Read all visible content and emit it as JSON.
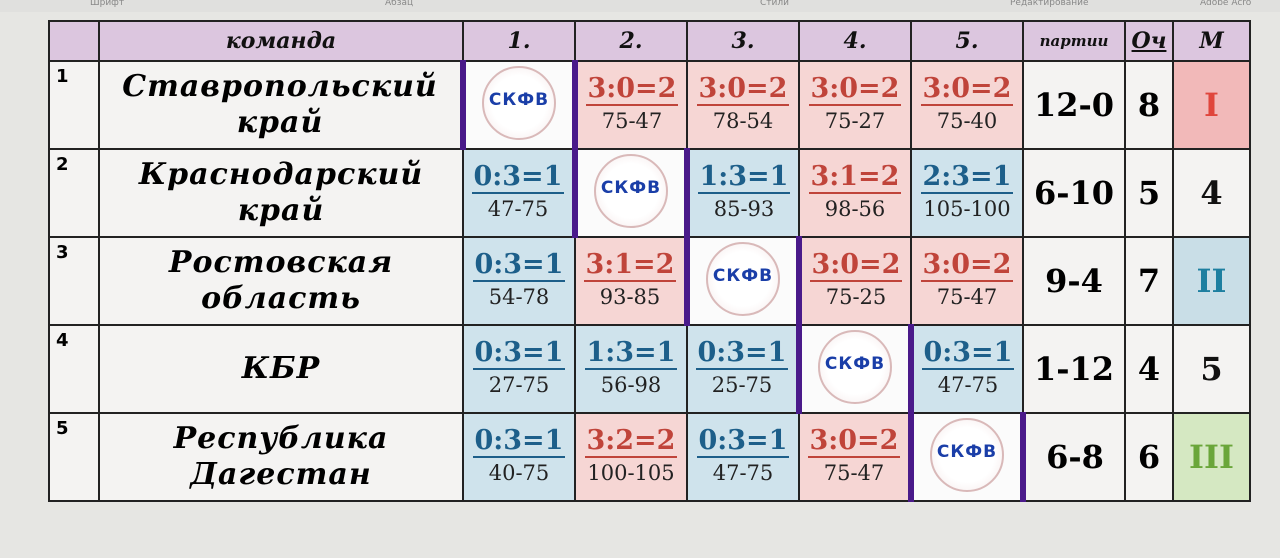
{
  "ribbon": [
    "Шрифт",
    "Абзац",
    "Стили",
    "Редактирование",
    "Adobe Acro"
  ],
  "header": {
    "team": "команда",
    "cols": [
      "1.",
      "2.",
      "3.",
      "4.",
      "5."
    ],
    "sets": "партии",
    "points": "Оч",
    "place": "М"
  },
  "logo_text": "СКФВ",
  "colors": {
    "win": "#f6d6d4",
    "loss": "#cfe3ec",
    "place_1": "#f2b9b9",
    "place_2": "#c9dee7",
    "place_3": "#d5e8c2",
    "diagonal_border": "#4a1a8a"
  },
  "rows": [
    {
      "num": "1",
      "team": [
        "Ставропольский",
        "край"
      ],
      "results": [
        null,
        {
          "s": "3:0=2",
          "p": "75-47"
        },
        {
          "s": "3:0=2",
          "p": "78-54"
        },
        {
          "s": "3:0=2",
          "p": "75-27"
        },
        {
          "s": "3:0=2",
          "p": "75-40"
        }
      ],
      "sets": "12-0",
      "points": "8",
      "place": "I",
      "place_color": "#f2b9b9",
      "place_text_color": "#e0463c"
    },
    {
      "num": "2",
      "team": [
        "Краснодарский",
        "край"
      ],
      "results": [
        {
          "s": "0:3=1",
          "p": "47-75"
        },
        null,
        {
          "s": "1:3=1",
          "p": "85-93"
        },
        {
          "s": "3:1=2",
          "p": "98-56"
        },
        {
          "s": "2:3=1",
          "p": "105-100"
        }
      ],
      "sets": "6-10",
      "points": "5",
      "place": "4",
      "place_color": "",
      "place_text_color": "#111"
    },
    {
      "num": "3",
      "team": [
        "Ростовская",
        "область"
      ],
      "results": [
        {
          "s": "0:3=1",
          "p": "54-78"
        },
        {
          "s": "3:1=2",
          "p": "93-85"
        },
        null,
        {
          "s": "3:0=2",
          "p": "75-25"
        },
        {
          "s": "3:0=2",
          "p": "75-47"
        }
      ],
      "sets": "9-4",
      "points": "7",
      "place": "II",
      "place_color": "#c9dee7",
      "place_text_color": "#1d7fa0"
    },
    {
      "num": "4",
      "team": [
        "КБР"
      ],
      "results": [
        {
          "s": "0:3=1",
          "p": "27-75"
        },
        {
          "s": "1:3=1",
          "p": "56-98"
        },
        {
          "s": "0:3=1",
          "p": "25-75"
        },
        null,
        {
          "s": "0:3=1",
          "p": "47-75"
        }
      ],
      "sets": "1-12",
      "points": "4",
      "place": "5",
      "place_color": "",
      "place_text_color": "#111"
    },
    {
      "num": "5",
      "team": [
        "Республика",
        "Дагестан"
      ],
      "results": [
        {
          "s": "0:3=1",
          "p": "40-75"
        },
        {
          "s": "3:2=2",
          "p": "100-105"
        },
        {
          "s": "0:3=1",
          "p": "47-75"
        },
        {
          "s": "3:0=2",
          "p": "75-47"
        },
        null
      ],
      "sets": "6-8",
      "points": "6",
      "place": "III",
      "place_color": "#d5e8c2",
      "place_text_color": "#6aa63a"
    }
  ]
}
